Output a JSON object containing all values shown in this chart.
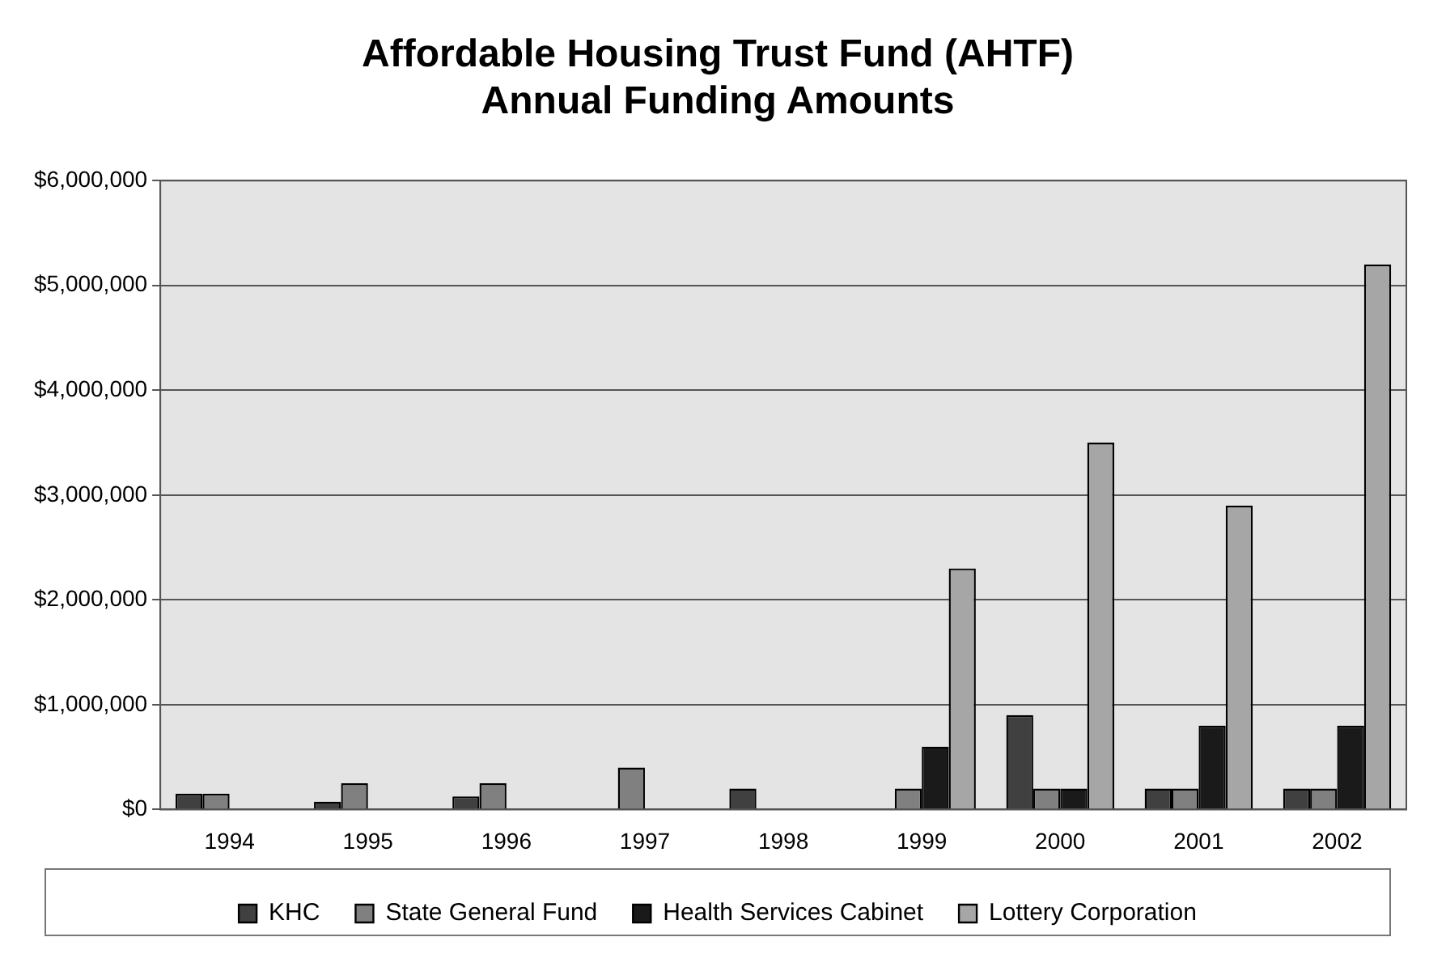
{
  "chart_data": {
    "type": "bar",
    "title": "Affordable Housing Trust Fund (AHTF)\nAnnual Funding Amounts",
    "categories": [
      "1994",
      "1995",
      "1996",
      "1997",
      "1998",
      "1999",
      "2000",
      "2001",
      "2002"
    ],
    "series": [
      {
        "name": "KHC",
        "color": "#404040",
        "values": [
          150000,
          75000,
          125000,
          0,
          200000,
          0,
          900000,
          200000,
          200000
        ]
      },
      {
        "name": "State General Fund",
        "color": "#808080",
        "values": [
          150000,
          250000,
          250000,
          400000,
          0,
          200000,
          200000,
          200000,
          200000
        ]
      },
      {
        "name": "Health Services Cabinet",
        "color": "#1a1a1a",
        "values": [
          0,
          0,
          0,
          0,
          0,
          600000,
          200000,
          800000,
          800000
        ]
      },
      {
        "name": "Lottery Corporation",
        "color": "#a6a6a6",
        "values": [
          0,
          0,
          0,
          0,
          0,
          2300000,
          3500000,
          2900000,
          5200000
        ]
      }
    ],
    "ylim": [
      0,
      6000000
    ],
    "yticks": [
      {
        "value": 0,
        "label": "$0"
      },
      {
        "value": 1000000,
        "label": "$1,000,000"
      },
      {
        "value": 2000000,
        "label": "$2,000,000"
      },
      {
        "value": 3000000,
        "label": "$3,000,000"
      },
      {
        "value": 4000000,
        "label": "$4,000,000"
      },
      {
        "value": 5000000,
        "label": "$5,000,000"
      },
      {
        "value": 6000000,
        "label": "$6,000,000"
      }
    ],
    "grid": "y",
    "legend": "bottom"
  }
}
